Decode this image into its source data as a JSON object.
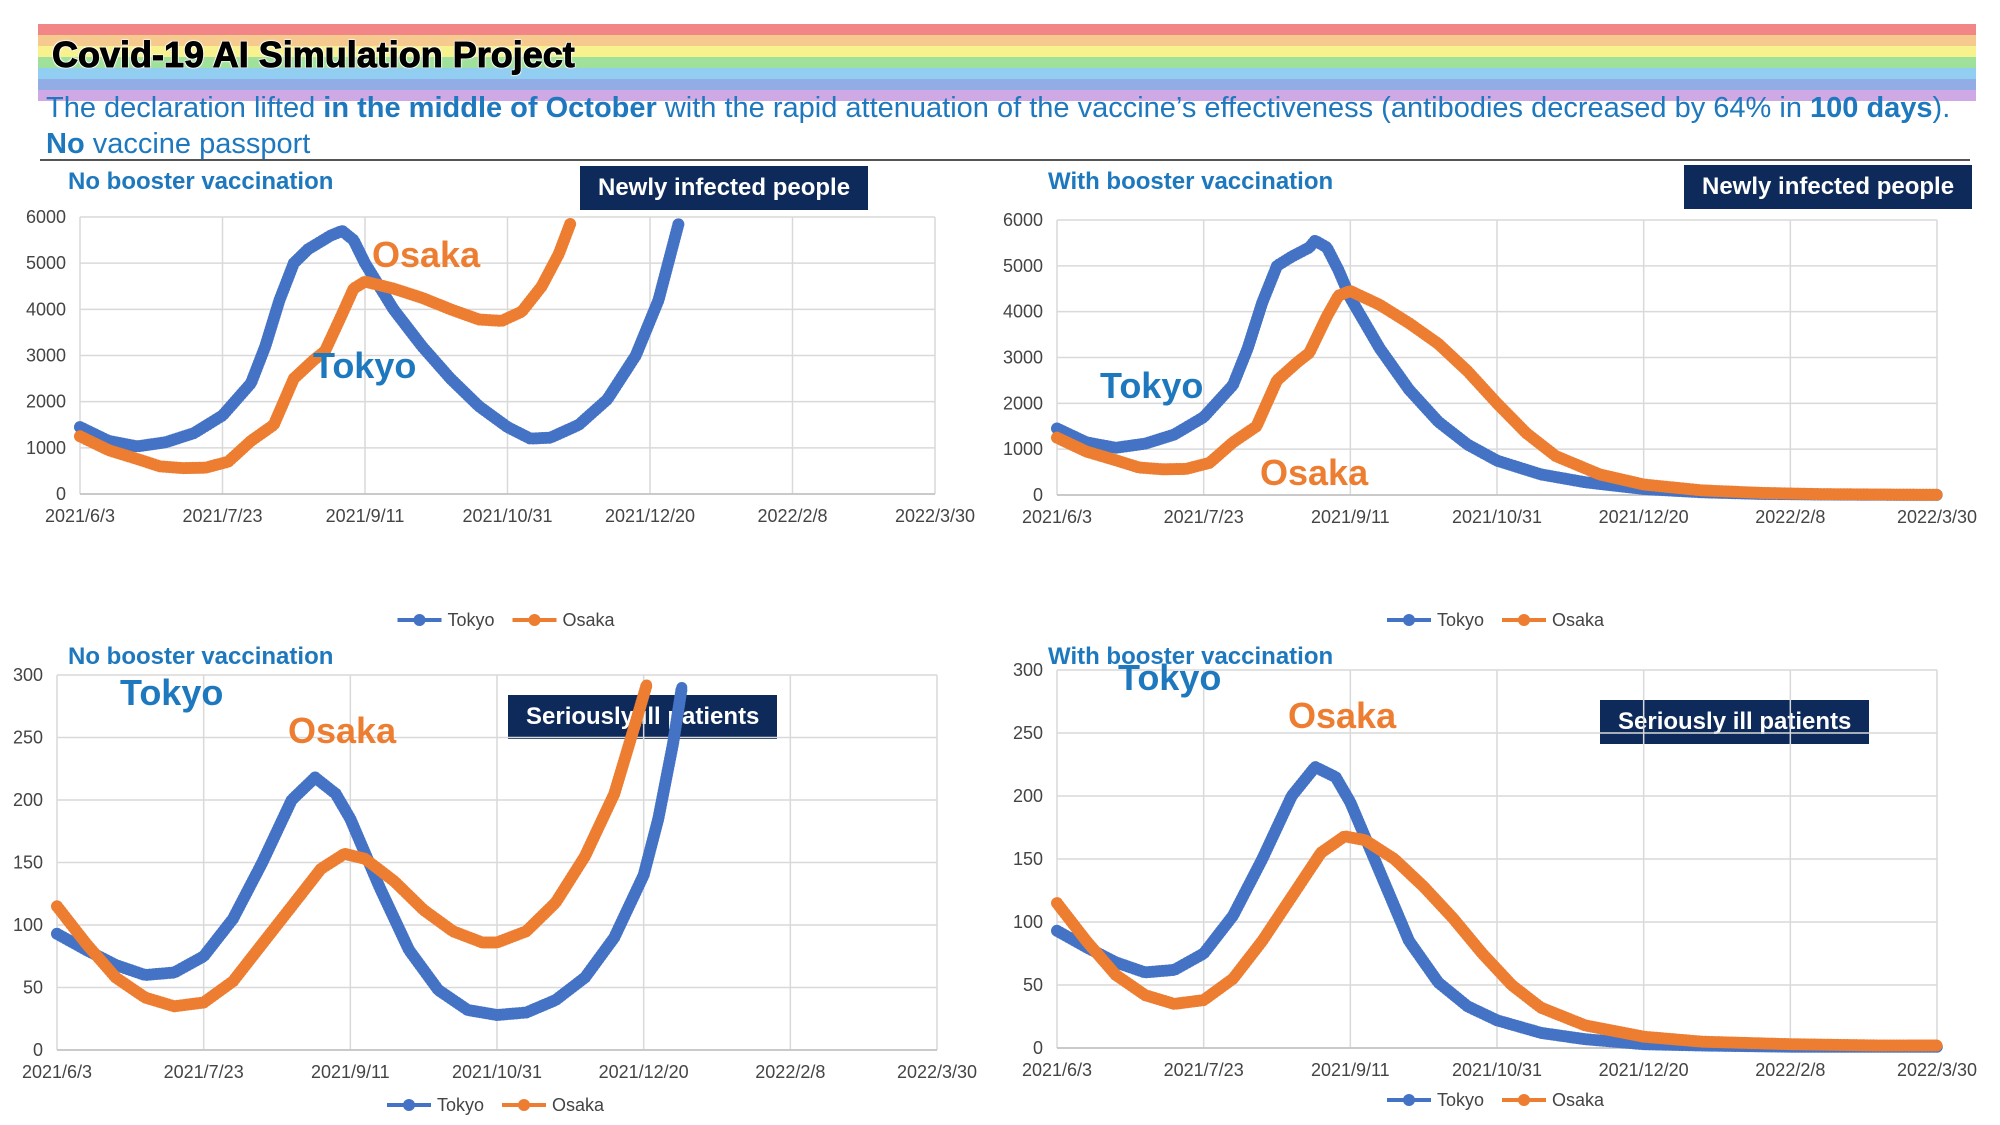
{
  "header": {
    "title": "Covid-19 AI Simulation Project",
    "subtitle_parts": [
      {
        "text": "The declaration lifted ",
        "bold": false
      },
      {
        "text": "in the middle of October",
        "bold": true
      },
      {
        "text": " with the rapid attenuation of the vaccine’s effectiveness (antibodies decreased by 64% in ",
        "bold": false
      },
      {
        "text": "100 days",
        "bold": true
      },
      {
        "text": ").",
        "bold": false
      }
    ],
    "subtitle_line2_parts": [
      {
        "text": "No",
        "bold": true
      },
      {
        "text": " vaccine passport",
        "bold": false
      }
    ],
    "rainbow_colors": [
      "#f07070",
      "#f4c07a",
      "#f6ee7a",
      "#8edb8a",
      "#7ec6ee",
      "#7f9fe0",
      "#c79ae0"
    ]
  },
  "colors": {
    "tokyo": "#4472c4",
    "osaka": "#ed7d31",
    "accent_blue": "#1e78be",
    "badge_bg": "#0d2a5a"
  },
  "chart_data": [
    {
      "type": "line",
      "panel_title": "No booster vaccination",
      "badge": "Newly infected people",
      "x_ticks": [
        "2021/6/3",
        "2021/7/23",
        "2021/9/11",
        "2021/10/31",
        "2021/12/20",
        "2022/2/8",
        "2022/3/30"
      ],
      "y_ticks": [
        0,
        1000,
        2000,
        3000,
        4000,
        5000,
        6000
      ],
      "ylim": [
        0,
        6000
      ],
      "series": [
        {
          "name": "Tokyo",
          "values": [
            [
              0,
              1450
            ],
            [
              10,
              1150
            ],
            [
              20,
              1030
            ],
            [
              30,
              1120
            ],
            [
              40,
              1320
            ],
            [
              50,
              1700
            ],
            [
              60,
              2400
            ],
            [
              65,
              3200
            ],
            [
              70,
              4200
            ],
            [
              75,
              5000
            ],
            [
              80,
              5300
            ],
            [
              88,
              5600
            ],
            [
              92,
              5700
            ],
            [
              96,
              5500
            ],
            [
              100,
              5000
            ],
            [
              110,
              4000
            ],
            [
              120,
              3200
            ],
            [
              130,
              2500
            ],
            [
              140,
              1900
            ],
            [
              150,
              1450
            ],
            [
              158,
              1200
            ],
            [
              165,
              1220
            ],
            [
              175,
              1500
            ],
            [
              185,
              2050
            ],
            [
              195,
              3000
            ],
            [
              203,
              4200
            ],
            [
              210,
              5850
            ]
          ]
        },
        {
          "name": "Osaka",
          "values": [
            [
              0,
              1250
            ],
            [
              10,
              950
            ],
            [
              20,
              760
            ],
            [
              28,
              600
            ],
            [
              36,
              560
            ],
            [
              44,
              570
            ],
            [
              52,
              700
            ],
            [
              60,
              1150
            ],
            [
              68,
              1500
            ],
            [
              75,
              2500
            ],
            [
              82,
              2900
            ],
            [
              86,
              3100
            ],
            [
              92,
              3900
            ],
            [
              96,
              4450
            ],
            [
              100,
              4600
            ],
            [
              110,
              4450
            ],
            [
              120,
              4250
            ],
            [
              130,
              4000
            ],
            [
              140,
              3780
            ],
            [
              148,
              3750
            ],
            [
              155,
              3950
            ],
            [
              162,
              4500
            ],
            [
              168,
              5200
            ],
            [
              172,
              5850
            ]
          ]
        }
      ],
      "annotations": [
        "Osaka",
        "Tokyo"
      ]
    },
    {
      "type": "line",
      "panel_title": "With booster vaccination",
      "badge": "Newly infected people",
      "x_ticks": [
        "2021/6/3",
        "2021/7/23",
        "2021/9/11",
        "2021/10/31",
        "2021/12/20",
        "2022/2/8",
        "2022/3/30"
      ],
      "y_ticks": [
        0,
        1000,
        2000,
        3000,
        4000,
        5000,
        6000
      ],
      "ylim": [
        0,
        6000
      ],
      "series": [
        {
          "name": "Tokyo",
          "values": [
            [
              0,
              1450
            ],
            [
              10,
              1150
            ],
            [
              20,
              1030
            ],
            [
              30,
              1120
            ],
            [
              40,
              1320
            ],
            [
              50,
              1700
            ],
            [
              60,
              2400
            ],
            [
              65,
              3200
            ],
            [
              70,
              4200
            ],
            [
              75,
              5000
            ],
            [
              80,
              5200
            ],
            [
              86,
              5400
            ],
            [
              88,
              5550
            ],
            [
              92,
              5400
            ],
            [
              96,
              4900
            ],
            [
              100,
              4300
            ],
            [
              110,
              3200
            ],
            [
              120,
              2300
            ],
            [
              130,
              1600
            ],
            [
              140,
              1100
            ],
            [
              150,
              750
            ],
            [
              165,
              450
            ],
            [
              180,
              280
            ],
            [
              200,
              130
            ],
            [
              220,
              60
            ],
            [
              240,
              25
            ],
            [
              260,
              10
            ],
            [
              280,
              5
            ],
            [
              300,
              3
            ]
          ]
        },
        {
          "name": "Osaka",
          "values": [
            [
              0,
              1250
            ],
            [
              10,
              950
            ],
            [
              20,
              760
            ],
            [
              28,
              600
            ],
            [
              36,
              560
            ],
            [
              44,
              570
            ],
            [
              52,
              700
            ],
            [
              60,
              1150
            ],
            [
              68,
              1500
            ],
            [
              75,
              2500
            ],
            [
              82,
              2900
            ],
            [
              86,
              3100
            ],
            [
              92,
              3900
            ],
            [
              96,
              4350
            ],
            [
              100,
              4450
            ],
            [
              110,
              4150
            ],
            [
              120,
              3750
            ],
            [
              130,
              3300
            ],
            [
              140,
              2700
            ],
            [
              150,
              2000
            ],
            [
              160,
              1350
            ],
            [
              170,
              850
            ],
            [
              185,
              450
            ],
            [
              200,
              230
            ],
            [
              220,
              100
            ],
            [
              240,
              45
            ],
            [
              260,
              20
            ],
            [
              280,
              10
            ],
            [
              300,
              5
            ]
          ]
        }
      ],
      "annotations": [
        "Tokyo",
        "Osaka"
      ]
    },
    {
      "type": "line",
      "panel_title": "No booster vaccination",
      "badge": "Seriously ill patients",
      "x_ticks": [
        "2021/6/3",
        "2021/7/23",
        "2021/9/11",
        "2021/10/31",
        "2021/12/20",
        "2022/2/8",
        "2022/3/30"
      ],
      "y_ticks": [
        0,
        50,
        100,
        150,
        200,
        250,
        300
      ],
      "ylim": [
        0,
        300
      ],
      "series": [
        {
          "name": "Tokyo",
          "values": [
            [
              0,
              93
            ],
            [
              10,
              80
            ],
            [
              20,
              68
            ],
            [
              30,
              60
            ],
            [
              40,
              62
            ],
            [
              50,
              75
            ],
            [
              60,
              105
            ],
            [
              70,
              150
            ],
            [
              80,
              200
            ],
            [
              88,
              218
            ],
            [
              95,
              205
            ],
            [
              100,
              185
            ],
            [
              110,
              130
            ],
            [
              120,
              80
            ],
            [
              130,
              48
            ],
            [
              140,
              32
            ],
            [
              150,
              28
            ],
            [
              160,
              30
            ],
            [
              170,
              40
            ],
            [
              180,
              58
            ],
            [
              190,
              90
            ],
            [
              200,
              140
            ],
            [
              205,
              185
            ],
            [
              210,
              245
            ],
            [
              213,
              290
            ]
          ]
        },
        {
          "name": "Osaka",
          "values": [
            [
              0,
              115
            ],
            [
              10,
              85
            ],
            [
              20,
              58
            ],
            [
              30,
              42
            ],
            [
              40,
              35
            ],
            [
              50,
              38
            ],
            [
              60,
              55
            ],
            [
              70,
              85
            ],
            [
              80,
              115
            ],
            [
              90,
              145
            ],
            [
              98,
              157
            ],
            [
              105,
              153
            ],
            [
              115,
              135
            ],
            [
              125,
              112
            ],
            [
              135,
              95
            ],
            [
              145,
              86
            ],
            [
              150,
              86
            ],
            [
              160,
              95
            ],
            [
              170,
              118
            ],
            [
              180,
              155
            ],
            [
              190,
              205
            ],
            [
              197,
              260
            ],
            [
              201,
              292
            ]
          ]
        }
      ],
      "annotations": [
        "Tokyo",
        "Osaka"
      ]
    },
    {
      "type": "line",
      "panel_title": "With booster vaccination",
      "badge": "Seriously ill patients",
      "x_ticks": [
        "2021/6/3",
        "2021/7/23",
        "2021/9/11",
        "2021/10/31",
        "2021/12/20",
        "2022/2/8",
        "2022/3/30"
      ],
      "y_ticks": [
        0,
        50,
        100,
        150,
        200,
        250,
        300
      ],
      "ylim": [
        0,
        300
      ],
      "series": [
        {
          "name": "Tokyo",
          "values": [
            [
              0,
              93
            ],
            [
              10,
              80
            ],
            [
              20,
              68
            ],
            [
              30,
              60
            ],
            [
              40,
              62
            ],
            [
              50,
              75
            ],
            [
              60,
              105
            ],
            [
              70,
              150
            ],
            [
              80,
              200
            ],
            [
              88,
              223
            ],
            [
              95,
              215
            ],
            [
              100,
              195
            ],
            [
              110,
              140
            ],
            [
              120,
              85
            ],
            [
              130,
              52
            ],
            [
              140,
              33
            ],
            [
              150,
              22
            ],
            [
              165,
              12
            ],
            [
              180,
              7
            ],
            [
              200,
              3
            ],
            [
              220,
              2
            ],
            [
              250,
              1
            ],
            [
              280,
              1
            ],
            [
              300,
              1
            ]
          ]
        },
        {
          "name": "Osaka",
          "values": [
            [
              0,
              115
            ],
            [
              10,
              85
            ],
            [
              20,
              58
            ],
            [
              30,
              42
            ],
            [
              40,
              35
            ],
            [
              50,
              38
            ],
            [
              60,
              55
            ],
            [
              70,
              85
            ],
            [
              80,
              120
            ],
            [
              90,
              155
            ],
            [
              98,
              168
            ],
            [
              105,
              165
            ],
            [
              115,
              150
            ],
            [
              125,
              128
            ],
            [
              135,
              103
            ],
            [
              145,
              75
            ],
            [
              155,
              50
            ],
            [
              165,
              32
            ],
            [
              180,
              18
            ],
            [
              200,
              9
            ],
            [
              220,
              5
            ],
            [
              250,
              3
            ],
            [
              280,
              2
            ],
            [
              300,
              2
            ]
          ]
        }
      ],
      "annotations": [
        "Tokyo",
        "Osaka"
      ]
    }
  ],
  "legend": {
    "tokyo": "Tokyo",
    "osaka": "Osaka"
  }
}
